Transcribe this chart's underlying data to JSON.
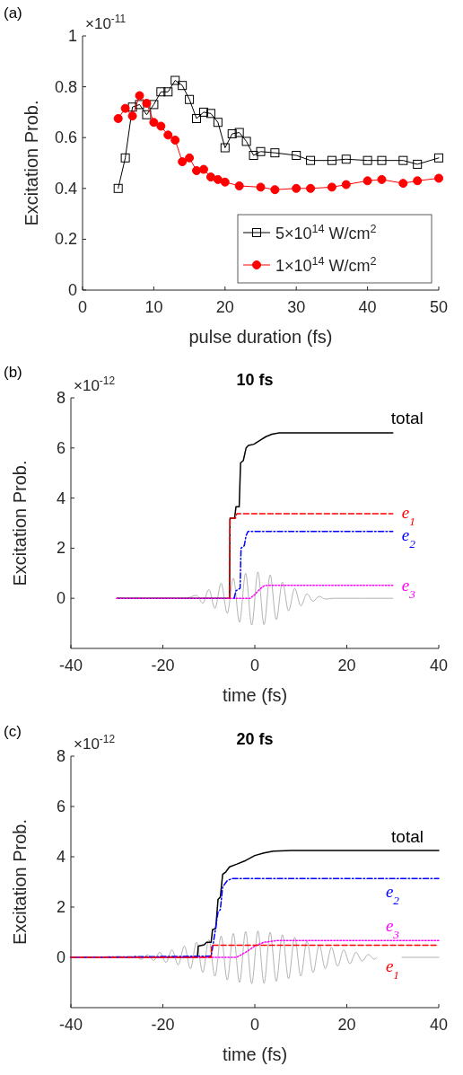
{
  "chart_data": [
    {
      "type": "line",
      "xlabel": "pulse duration (fs)",
      "ylabel": "Excitation Prob.",
      "annotations": [
        "(a)",
        "×10$^{-11}$"
      ],
      "xlim": [
        0,
        50
      ],
      "xticks": [
        0,
        10,
        20,
        30,
        40,
        50
      ],
      "ylim": [
        0,
        1
      ],
      "yticks": [
        0,
        0.2,
        0.4,
        0.6,
        0.8,
        1
      ],
      "legend": "bottom right",
      "grid": false,
      "series": [
        {
          "name": "5×10$^{14}$ W/cm$^{2}$",
          "color": "#000000",
          "marker": "square",
          "line_style": "solid",
          "x": [
            5,
            6,
            7,
            8,
            9,
            10,
            11,
            12,
            13,
            14,
            15,
            16,
            17,
            18,
            19,
            20,
            21,
            22,
            23,
            24,
            25,
            27,
            30,
            32,
            35,
            37,
            40,
            42,
            45,
            47,
            50
          ],
          "values": [
            0.4,
            0.52,
            0.72,
            0.73,
            0.69,
            0.73,
            0.78,
            0.78,
            0.825,
            0.805,
            0.75,
            0.675,
            0.7,
            0.695,
            0.66,
            0.56,
            0.615,
            0.62,
            0.585,
            0.53,
            0.545,
            0.54,
            0.53,
            0.51,
            0.51,
            0.515,
            0.51,
            0.51,
            0.51,
            0.495,
            0.52
          ]
        },
        {
          "name": "1×10$^{14}$ W/cm$^{2}$",
          "color": "#ff0000",
          "marker": "circle",
          "line_style": "solid",
          "x": [
            5,
            6,
            7,
            8,
            9,
            10,
            11,
            12,
            13,
            14,
            15,
            16,
            17,
            18,
            19,
            20,
            22,
            25,
            27,
            30,
            32,
            35,
            37,
            40,
            42,
            45,
            47,
            50
          ],
          "values": [
            0.675,
            0.715,
            0.685,
            0.765,
            0.735,
            0.66,
            0.645,
            0.61,
            0.59,
            0.505,
            0.52,
            0.47,
            0.475,
            0.445,
            0.435,
            0.425,
            0.41,
            0.405,
            0.395,
            0.4,
            0.4,
            0.405,
            0.415,
            0.43,
            0.435,
            0.42,
            0.43,
            0.44
          ]
        }
      ]
    },
    {
      "type": "line",
      "title": "10 fs",
      "xlabel": "time (fs)",
      "ylabel": "Excitation Prob.",
      "annotations": [
        "(b)",
        "×10$^{-12}$"
      ],
      "xlim": [
        -40,
        40
      ],
      "xticks": [
        -40,
        -20,
        0,
        20,
        40
      ],
      "ylim": [
        -2,
        8
      ],
      "yticks": [
        0,
        2,
        4,
        6,
        8
      ],
      "grid": false,
      "series": [
        {
          "name": "total",
          "color": "#000000",
          "line_style": "solid",
          "x": [
            -30,
            -5.5,
            -5.4,
            -4.4,
            -4.1,
            -3.4,
            -3.1,
            -2.5,
            -1.9,
            -1.4,
            -0.2,
            1.1,
            2.4,
            3.7,
            5.3,
            30
          ],
          "values": [
            0,
            0,
            3.2,
            3.2,
            3.65,
            3.65,
            5.4,
            5.5,
            6.0,
            6.1,
            6.15,
            6.3,
            6.45,
            6.55,
            6.6,
            6.6
          ]
        },
        {
          "name": "e$_{1}$",
          "color": "#ff0000",
          "line_style": "dashed",
          "x": [
            -5.5,
            -5.4,
            -4.2,
            -3.9,
            30
          ],
          "values": [
            0,
            3.2,
            3.2,
            3.38,
            3.38
          ]
        },
        {
          "name": "e$_{2}$",
          "color": "#0000ff",
          "line_style": "dashdot",
          "x": [
            -4.5,
            -4.1,
            -3.2,
            -3.0,
            -2.3,
            -1.9,
            -1.5,
            30
          ],
          "values": [
            0,
            0.3,
            0.4,
            2.0,
            2.1,
            2.5,
            2.67,
            2.67
          ]
        },
        {
          "name": "e$_{3}$",
          "color": "#ff00ff",
          "line_style": "dotted",
          "x": [
            -30,
            -1,
            0,
            1,
            2,
            3,
            30
          ],
          "values": [
            0,
            0,
            0.15,
            0.35,
            0.5,
            0.52,
            0.52
          ]
        },
        {
          "color": "#a0a0a0",
          "line_style": "solid",
          "x": [
            -30,
            -15,
            -12.67,
            -11.33,
            -10,
            -8.67,
            -7.33,
            -6,
            -4.67,
            -3.33,
            -2,
            -0.67,
            0.67,
            2,
            3.33,
            4.67,
            6,
            7.33,
            8.67,
            10,
            11.33,
            12.67,
            14,
            15.33,
            17,
            30
          ],
          "values": [
            0,
            0,
            0.12,
            -0.2,
            0.35,
            -0.4,
            0.6,
            -0.6,
            0.8,
            -0.95,
            1.0,
            -1.07,
            1.05,
            -1.05,
            0.93,
            -0.85,
            0.65,
            -0.5,
            0.4,
            -0.3,
            0.18,
            -0.12,
            0.08,
            -0.03,
            0,
            0
          ]
        }
      ]
    },
    {
      "type": "line",
      "title": "20 fs",
      "xlabel": "time (fs)",
      "ylabel": "Excitation Prob.",
      "annotations": [
        "(c)",
        "×10$^{-12}$"
      ],
      "xlim": [
        -40,
        40
      ],
      "xticks": [
        -40,
        -20,
        0,
        20,
        40
      ],
      "ylim": [
        -2,
        8
      ],
      "yticks": [
        0,
        2,
        4,
        6,
        8
      ],
      "grid": false,
      "series": [
        {
          "name": "total",
          "color": "#000000",
          "line_style": "solid",
          "x": [
            -40,
            -12.5,
            -12.3,
            -11,
            -10.5,
            -9.5,
            -9.2,
            -8.5,
            -8,
            -7.5,
            -7,
            -6.3,
            -5.5,
            -4,
            -2,
            0,
            2,
            4,
            8,
            40
          ],
          "values": [
            0,
            0,
            0.45,
            0.5,
            0.6,
            0.6,
            1.1,
            1.15,
            2.3,
            2.4,
            3.3,
            3.4,
            3.6,
            3.7,
            3.85,
            4.05,
            4.15,
            4.22,
            4.25,
            4.25
          ]
        },
        {
          "name": "e$_{1}$",
          "color": "#ff0000",
          "line_style": "dashed",
          "x": [
            -40,
            -9.5,
            -9.4,
            40
          ],
          "values": [
            0,
            0,
            0.48,
            0.48
          ]
        },
        {
          "name": "e$_{2}$",
          "color": "#0000ff",
          "line_style": "dashdot",
          "x": [
            -40,
            -9.5,
            -9,
            -8,
            -7.5,
            -7,
            -6,
            -5,
            40
          ],
          "values": [
            0,
            0.05,
            0.6,
            1.8,
            1.9,
            2.8,
            3.05,
            3.13,
            3.13
          ]
        },
        {
          "name": "e$_{3}$",
          "color": "#ff00ff",
          "line_style": "dotted",
          "x": [
            -40,
            -4,
            -2,
            0,
            2,
            5,
            40
          ],
          "values": [
            0,
            0,
            0.2,
            0.45,
            0.6,
            0.67,
            0.67
          ]
        },
        {
          "color": "#a0a0a0",
          "line_style": "solid",
          "x": [
            -40,
            -30,
            -28.67,
            -27.33,
            -26,
            -24.67,
            -23.33,
            -22,
            -20.67,
            -19.33,
            -18,
            -16.67,
            -15.33,
            -14,
            -12.67,
            -11.33,
            -10,
            -8.67,
            -7.33,
            -6,
            -4.67,
            -3.33,
            -2,
            -0.67,
            0.67,
            2,
            3.33,
            4.67,
            6,
            7.33,
            8.67,
            10,
            11.33,
            12.67,
            14,
            15.33,
            16.67,
            18,
            19.33,
            20.67,
            22,
            23.33,
            24.67,
            26,
            26.5,
            29,
            32,
            40
          ],
          "values": [
            0,
            0,
            0.03,
            -0.03,
            0.05,
            -0.08,
            0.1,
            -0.12,
            0.2,
            -0.2,
            0.3,
            -0.3,
            0.45,
            -0.45,
            0.6,
            -0.6,
            0.7,
            -0.75,
            0.85,
            -0.9,
            0.95,
            -1.0,
            1.03,
            -1.05,
            1.05,
            -1.03,
            1.0,
            -0.95,
            0.9,
            -0.85,
            0.8,
            -0.75,
            0.65,
            -0.6,
            0.5,
            -0.45,
            0.4,
            -0.35,
            0.3,
            -0.25,
            0.2,
            -0.15,
            0.12,
            -0.08,
            0,
            null,
            0,
            0
          ]
        }
      ]
    }
  ]
}
